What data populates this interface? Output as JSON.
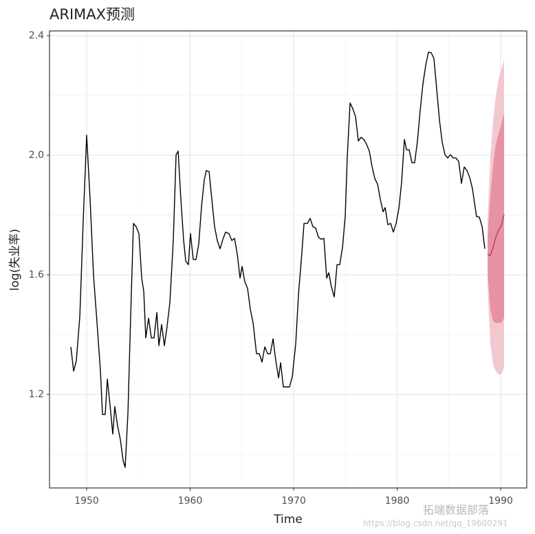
{
  "chart_data": {
    "type": "forecast",
    "title": "ARIMAX预测",
    "xlabel": "Time",
    "ylabel": "log(失业率)",
    "watermark": [
      "拓端数据部落",
      "https://blog.csdn.net/qq_19600291"
    ],
    "xlim": [
      1946.41,
      1992.52
    ],
    "ylim": [
      0.887,
      2.416
    ],
    "xticks": [
      1950,
      1960,
      1970,
      1980,
      1990
    ],
    "yticks": [
      1.2,
      1.6,
      {
        "value": 2,
        "label": "2.0"
      },
      2.4
    ],
    "x_minor_grid": [
      1955,
      1965,
      1975,
      1985
    ],
    "y_minor_grid": [
      1.0,
      1.4,
      1.8,
      2.2
    ],
    "grid": true,
    "color": "#000000",
    "x": [
      1948.47,
      1948.74,
      1949.0,
      1949.34,
      1949.67,
      1950.0,
      1950.33,
      1950.66,
      1951.0,
      1951.33,
      1951.53,
      1951.79,
      1952.0,
      1952.26,
      1952.52,
      1952.72,
      1952.99,
      1953.26,
      1953.52,
      1953.72,
      1953.99,
      1954.25,
      1954.52,
      1954.78,
      1955.05,
      1955.32,
      1955.52,
      1955.71,
      1955.98,
      1956.25,
      1956.51,
      1956.78,
      1956.98,
      1957.24,
      1957.51,
      1957.77,
      1958.04,
      1958.37,
      1958.64,
      1958.84,
      1959.1,
      1959.37,
      1959.57,
      1959.83,
      1960.03,
      1960.3,
      1960.56,
      1960.83,
      1961.1,
      1961.36,
      1961.56,
      1961.83,
      1962.09,
      1962.36,
      1962.62,
      1962.89,
      1963.16,
      1963.42,
      1963.75,
      1964.02,
      1964.29,
      1964.55,
      1964.82,
      1965.02,
      1965.28,
      1965.55,
      1965.81,
      1966.08,
      1966.41,
      1966.68,
      1966.94,
      1967.21,
      1967.48,
      1967.74,
      1968.01,
      1968.27,
      1968.54,
      1968.74,
      1969.0,
      1969.34,
      1969.6,
      1969.87,
      1970.2,
      1970.47,
      1970.73,
      1971.0,
      1971.33,
      1971.59,
      1971.86,
      1972.13,
      1972.39,
      1972.66,
      1972.92,
      1973.19,
      1973.39,
      1973.65,
      1973.92,
      1974.19,
      1974.45,
      1974.72,
      1974.98,
      1975.18,
      1975.45,
      1975.71,
      1975.98,
      1976.25,
      1976.51,
      1976.78,
      1977.04,
      1977.31,
      1977.57,
      1977.84,
      1978.11,
      1978.37,
      1978.64,
      1978.84,
      1979.1,
      1979.37,
      1979.63,
      1979.9,
      1980.17,
      1980.43,
      1980.7,
      1980.9,
      1981.16,
      1981.43,
      1981.69,
      1981.96,
      1982.23,
      1982.49,
      1982.76,
      1983.02,
      1983.29,
      1983.55,
      1983.82,
      1984.09,
      1984.35,
      1984.62,
      1984.88,
      1985.15,
      1985.42,
      1985.68,
      1985.95,
      1986.21,
      1986.48,
      1986.74,
      1987.01,
      1987.28,
      1987.47,
      1987.67,
      1987.94,
      1988.21,
      1988.47
    ],
    "values": [
      1.359,
      1.278,
      1.313,
      1.462,
      1.784,
      2.067,
      1.853,
      1.6,
      1.439,
      1.278,
      1.133,
      1.133,
      1.251,
      1.163,
      1.067,
      1.159,
      1.094,
      1.048,
      0.979,
      0.956,
      1.14,
      1.462,
      1.772,
      1.761,
      1.738,
      1.589,
      1.543,
      1.389,
      1.455,
      1.389,
      1.389,
      1.474,
      1.363,
      1.434,
      1.363,
      1.428,
      1.508,
      1.715,
      2.002,
      2.014,
      1.853,
      1.715,
      1.646,
      1.634,
      1.738,
      1.651,
      1.651,
      1.703,
      1.83,
      1.917,
      1.949,
      1.945,
      1.853,
      1.761,
      1.715,
      1.687,
      1.719,
      1.743,
      1.738,
      1.715,
      1.722,
      1.669,
      1.589,
      1.628,
      1.577,
      1.554,
      1.485,
      1.439,
      1.336,
      1.336,
      1.308,
      1.359,
      1.336,
      1.336,
      1.386,
      1.313,
      1.255,
      1.306,
      1.225,
      1.225,
      1.225,
      1.26,
      1.37,
      1.536,
      1.646,
      1.772,
      1.772,
      1.789,
      1.761,
      1.756,
      1.726,
      1.719,
      1.722,
      1.589,
      1.607,
      1.559,
      1.526,
      1.634,
      1.634,
      1.692,
      1.795,
      1.995,
      2.175,
      2.156,
      2.129,
      2.048,
      2.06,
      2.053,
      2.037,
      2.014,
      1.963,
      1.922,
      1.903,
      1.853,
      1.811,
      1.825,
      1.768,
      1.772,
      1.743,
      1.772,
      1.823,
      1.91,
      2.053,
      2.018,
      2.018,
      1.975,
      1.975,
      2.048,
      2.152,
      2.239,
      2.301,
      2.345,
      2.343,
      2.324,
      2.221,
      2.117,
      2.044,
      2.002,
      1.991,
      2.002,
      1.991,
      1.991,
      1.979,
      1.906,
      1.961,
      1.949,
      1.926,
      1.887,
      1.841,
      1.795,
      1.793,
      1.761,
      1.687
    ],
    "forecast": {
      "x": [
        1988.74,
        1989.0,
        1989.27,
        1989.53,
        1989.8,
        1990.07,
        1990.33
      ],
      "mean": [
        1.669,
        1.664,
        1.692,
        1.726,
        1.749,
        1.766,
        1.802
      ],
      "lo80": [
        1.611,
        1.485,
        1.444,
        1.439,
        1.439,
        1.439,
        1.457
      ],
      "hi80": [
        1.726,
        1.864,
        1.968,
        2.037,
        2.071,
        2.106,
        2.14
      ],
      "lo95": [
        1.554,
        1.37,
        1.301,
        1.278,
        1.267,
        1.267,
        1.29
      ],
      "hi95": [
        1.784,
        1.991,
        2.117,
        2.198,
        2.255,
        2.29,
        2.317
      ],
      "mean_color": "#b4365c",
      "color80": "#e692a4",
      "color95": "#f2c8d0"
    }
  }
}
